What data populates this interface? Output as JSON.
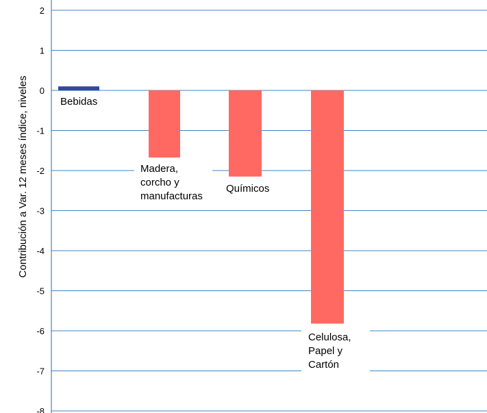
{
  "chart_data": {
    "type": "bar",
    "ylabel": "Contribución a Var. 12 meses índice, niveles",
    "ylim": [
      -8,
      2
    ],
    "yticks": [
      2,
      1,
      0,
      -1,
      -2,
      -3,
      -4,
      -5,
      -6,
      -7,
      -8
    ],
    "ytick_labels": [
      "2",
      "1",
      "0",
      "-1",
      "-2",
      "-3",
      "-4",
      "-5",
      "-6",
      "-7",
      "-8"
    ],
    "grid": true,
    "categories": [
      "Bebidas",
      "Madera, corcho y manufacturas",
      "Químicos",
      "Celulosa, Papel y Cartón"
    ],
    "label_lines": [
      [
        "Bebidas"
      ],
      [
        "Madera,",
        "corcho y",
        "manufacturas"
      ],
      [
        "Químicos"
      ],
      [
        "Celulosa,",
        "Papel y",
        "Cartón"
      ]
    ],
    "values": [
      0.1,
      -1.72,
      -2.15,
      -5.82
    ],
    "colors": [
      "#2f4a9e",
      "#ff6961",
      "#ff6961",
      "#ff6961"
    ],
    "gridline_color": "#3d85c6"
  }
}
